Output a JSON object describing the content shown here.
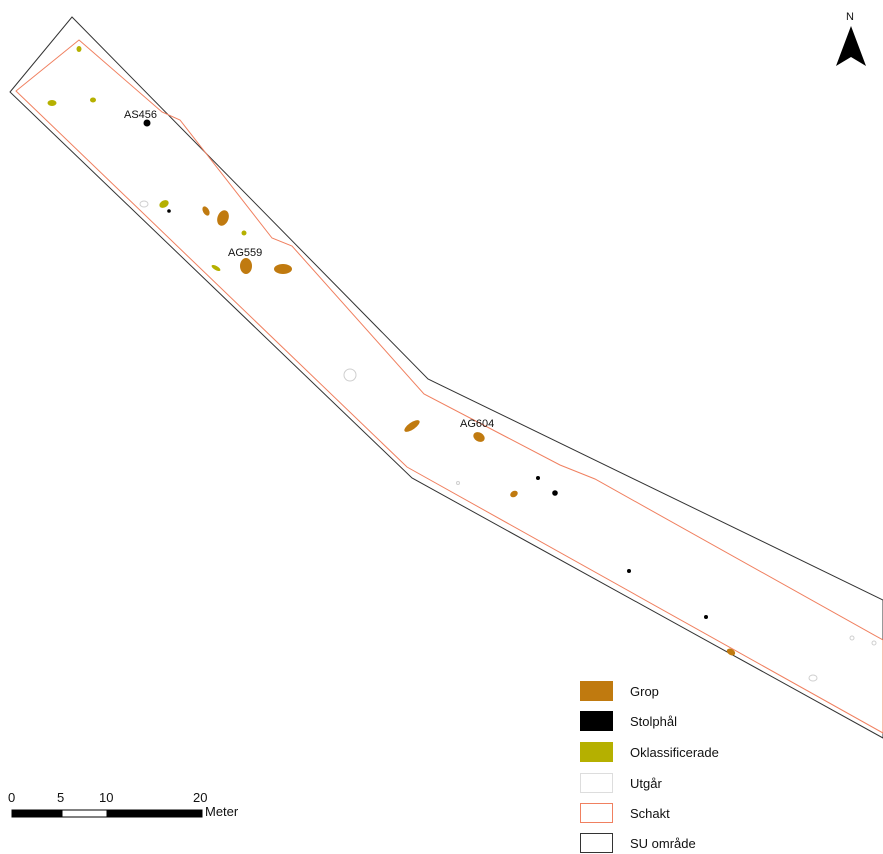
{
  "map": {
    "north_label": "N",
    "features": [
      {
        "id": "AS456",
        "label": "AS456",
        "type": "stolphal"
      },
      {
        "id": "AG559",
        "label": "AG559",
        "type": "grop"
      },
      {
        "id": "AG604",
        "label": "AG604",
        "type": "grop"
      }
    ]
  },
  "scale_bar": {
    "ticks": [
      "0",
      "5",
      "10",
      "20"
    ],
    "unit": "Meter"
  },
  "legend": {
    "items": [
      {
        "label": "Grop",
        "fill": "#c07a0f",
        "stroke": "#c07a0f"
      },
      {
        "label": "Stolphål",
        "fill": "#000000",
        "stroke": "#000000"
      },
      {
        "label": "Oklassificerade",
        "fill": "#b5b000",
        "stroke": "#b5b000"
      },
      {
        "label": "Utgår",
        "fill": "#ffffff",
        "stroke": "#dddddd"
      },
      {
        "label": "Schakt",
        "fill": "#ffffff",
        "stroke": "#f08060"
      },
      {
        "label": "SU område",
        "fill": "#ffffff",
        "stroke": "#333333"
      }
    ]
  },
  "colors": {
    "grop": "#c07a0f",
    "stolphal": "#000000",
    "oklassificerade": "#b5b000",
    "utgar": "#d8d8d8",
    "schakt": "#f08060",
    "su_omrade": "#333333"
  }
}
